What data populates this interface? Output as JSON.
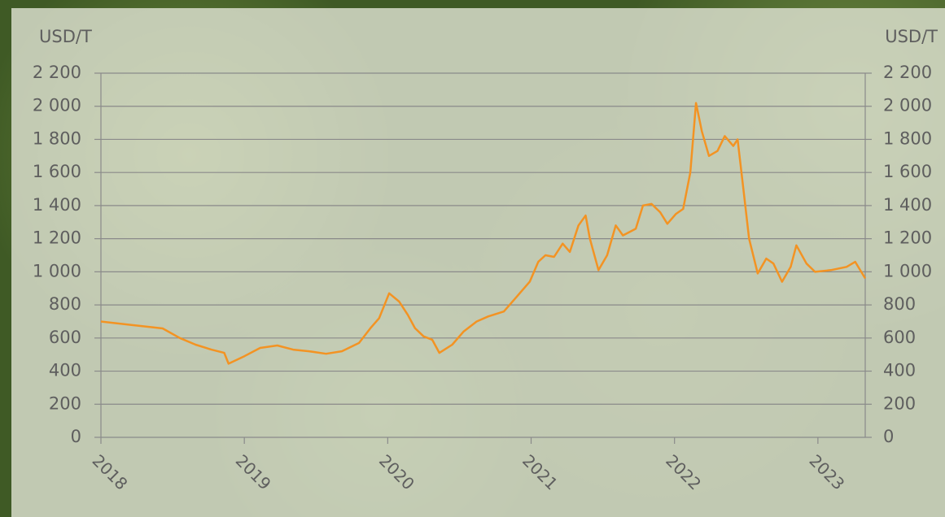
{
  "chart_data": {
    "type": "line",
    "y_label": "USD/T",
    "y2_label": "USD/T",
    "xlim": [
      2018,
      2023.33
    ],
    "xticks": [
      2018,
      2019,
      2020,
      2021,
      2022,
      2023
    ],
    "ylim": [
      0,
      2200
    ],
    "yticks": [
      0,
      200,
      400,
      600,
      800,
      {
        "value": 1000,
        "label": "1 000"
      },
      {
        "value": 1200,
        "label": "1 200"
      },
      {
        "value": 1400,
        "label": "1 400"
      },
      {
        "value": 1600,
        "label": "1 600"
      },
      {
        "value": 1800,
        "label": "1 800"
      },
      {
        "value": 2000,
        "label": "2 000"
      },
      {
        "value": 2200,
        "label": "2 200"
      }
    ],
    "y2lim": [
      0,
      2200
    ],
    "y2ticks": [
      0,
      200,
      400,
      600,
      800,
      {
        "value": 1000,
        "label": "1 000"
      },
      {
        "value": 1200,
        "label": "1 200"
      },
      {
        "value": 1400,
        "label": "1 400"
      },
      {
        "value": 1600,
        "label": "1 600"
      },
      {
        "value": 1800,
        "label": "1 800"
      },
      {
        "value": 2000,
        "label": "2 000"
      },
      {
        "value": 2200,
        "label": "2 200"
      }
    ],
    "grid": true,
    "x": [
      2018.0,
      2018.2,
      2018.43,
      2018.55,
      2018.66,
      2018.77,
      2018.86,
      2018.89,
      2019.0,
      2019.11,
      2019.23,
      2019.34,
      2019.45,
      2019.57,
      2019.68,
      2019.8,
      2019.88,
      2019.94,
      2020.01,
      2020.08,
      2020.14,
      2020.19,
      2020.25,
      2020.31,
      2020.36,
      2020.45,
      2020.53,
      2020.62,
      2020.7,
      2020.81,
      2020.9,
      2020.99,
      2021.05,
      2021.1,
      2021.16,
      2021.22,
      2021.27,
      2021.33,
      2021.38,
      2021.41,
      2021.47,
      2021.53,
      2021.59,
      2021.64,
      2021.73,
      2021.78,
      2021.84,
      2021.9,
      2021.95,
      2022.01,
      2022.06,
      2022.11,
      2022.15,
      2022.19,
      2022.24,
      2022.3,
      2022.35,
      2022.41,
      2022.44,
      2022.48,
      2022.52,
      2022.58,
      2022.64,
      2022.69,
      2022.75,
      2022.81,
      2022.85,
      2022.92,
      2022.98,
      2023.09,
      2023.2,
      2023.26,
      2023.33
    ],
    "series": [
      {
        "color": "#f39323",
        "values": [
          700,
          680,
          658,
          600,
          560,
          530,
          510,
          445,
          490,
          540,
          555,
          530,
          520,
          505,
          520,
          570,
          660,
          720,
          870,
          820,
          740,
          660,
          610,
          590,
          510,
          560,
          640,
          700,
          730,
          760,
          850,
          940,
          1060,
          1100,
          1090,
          1170,
          1120,
          1280,
          1340,
          1200,
          1010,
          1100,
          1280,
          1220,
          1260,
          1400,
          1410,
          1360,
          1290,
          1350,
          1380,
          1600,
          2020,
          1850,
          1700,
          1730,
          1820,
          1760,
          1800,
          1500,
          1200,
          990,
          1080,
          1050,
          940,
          1030,
          1160,
          1050,
          1000,
          1010,
          1030,
          1060,
          960
        ]
      }
    ]
  }
}
